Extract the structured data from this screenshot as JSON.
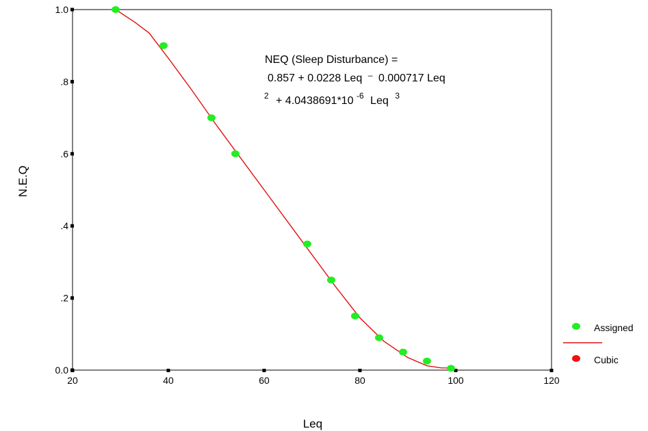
{
  "chart_data": {
    "type": "scatter",
    "xlabel": "Leq",
    "ylabel": "N.E.Q",
    "xlim": [
      20,
      120
    ],
    "ylim": [
      0,
      1
    ],
    "x_ticks": [
      20,
      40,
      60,
      80,
      100,
      120
    ],
    "x_tick_labels": [
      "20",
      "40",
      "60",
      "80",
      "100",
      "120"
    ],
    "y_ticks": [
      0,
      0.2,
      0.4,
      0.6,
      0.8,
      1.0
    ],
    "y_tick_labels": [
      "0.0",
      ".2",
      ".4",
      ".6",
      ".8",
      "1.0"
    ],
    "grid": false,
    "legend_position": "right",
    "annotation": {
      "line1": "NEQ (Sleep Disturbance) =",
      "line2": "0.857 + 0.0228 Leq",
      "line2_sup": "_",
      "line2_b": "0.000717 Leq",
      "line3_pre_sup": "2",
      "line3": "+ 4.0438691*10",
      "line3_sup": "-6",
      "line3_b": "Leq",
      "line3_sup_b": "3"
    },
    "series": [
      {
        "name": "Assigned",
        "kind": "points",
        "color": "#22ee22",
        "x": [
          29,
          39,
          49,
          54,
          69,
          74,
          79,
          84,
          89,
          94,
          99
        ],
        "y": [
          1.0,
          0.9,
          0.7,
          0.6,
          0.35,
          0.25,
          0.15,
          0.09,
          0.05,
          0.025,
          0.005
        ]
      },
      {
        "name": "Cubic",
        "kind": "line",
        "color": "#e01010",
        "x": [
          29,
          33,
          36,
          40,
          45,
          50,
          55,
          60,
          65,
          70,
          75,
          80,
          85,
          90,
          94,
          97,
          99
        ],
        "y": [
          1.0,
          0.965,
          0.935,
          0.865,
          0.775,
          0.68,
          0.59,
          0.5,
          0.41,
          0.32,
          0.23,
          0.145,
          0.08,
          0.035,
          0.012,
          0.006,
          0.006
        ]
      }
    ]
  }
}
